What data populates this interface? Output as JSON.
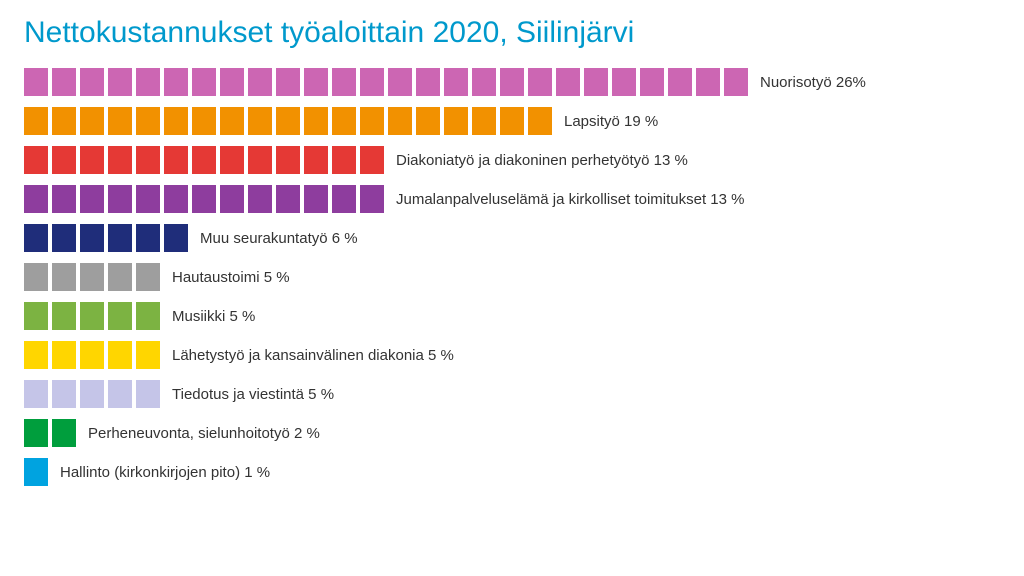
{
  "chart": {
    "type": "unit-bar",
    "title": "Nettokustannukset työaloittain 2020, Siilinjärvi",
    "title_color": "#0099cc",
    "title_fontsize": 30,
    "background_color": "#ffffff",
    "label_color": "#333333",
    "label_fontsize": 15,
    "block_width": 24,
    "block_height": 28,
    "block_gap": 4,
    "row_gap": 11,
    "rows": [
      {
        "label": "Nuorisotyö 26%",
        "value": 26,
        "color": "#cc66b3"
      },
      {
        "label": "Lapsityö 19 %",
        "value": 19,
        "color": "#f29100"
      },
      {
        "label": "Diakoniatyö ja diakoninen perhetyötyö 13 %",
        "value": 13,
        "color": "#e53935"
      },
      {
        "label": "Jumalanpalveluselämä ja kirkolliset toimitukset 13 %",
        "value": 13,
        "color": "#8e3d9e"
      },
      {
        "label": "Muu seurakuntatyö 6  %",
        "value": 6,
        "color": "#1f2d7a"
      },
      {
        "label": "Hautaustoimi 5 %",
        "value": 5,
        "color": "#9e9e9e"
      },
      {
        "label": "Musiikki 5 %",
        "value": 5,
        "color": "#7cb342"
      },
      {
        "label": "Lähetystyö ja kansainvälinen diakonia 5 %",
        "value": 5,
        "color": "#ffd600"
      },
      {
        "label": "Tiedotus ja viestintä 5 %",
        "value": 5,
        "color": "#c5c5e8"
      },
      {
        "label": "Perheneuvonta, sielunhoitotyö 2 %",
        "value": 2,
        "color": "#009e3d"
      },
      {
        "label": "Hallinto (kirkonkirjojen pito) 1 %",
        "value": 1,
        "color": "#00a3e0"
      }
    ]
  }
}
